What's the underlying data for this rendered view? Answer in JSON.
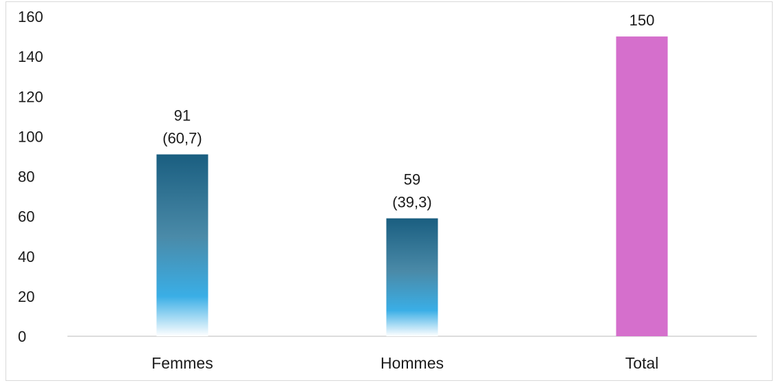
{
  "chart_data": {
    "type": "bar",
    "categories": [
      "Femmes",
      "Hommes",
      "Total"
    ],
    "values": [
      91,
      59,
      150
    ],
    "data_labels": [
      [
        "91",
        "(60,7)"
      ],
      [
        "59",
        "(39,3)"
      ],
      [
        "150"
      ]
    ],
    "yticks": [
      "0",
      "20",
      "40",
      "60",
      "80",
      "100",
      "120",
      "140",
      "160"
    ],
    "ylim": [
      0,
      160
    ],
    "grid": false,
    "legend": "none",
    "title": "",
    "xlabel": "",
    "ylabel": "",
    "colors": {
      "gradient_top": "#1a5e80",
      "gradient_mid": "#4a8aa8",
      "gradient_light": "#3aaee6",
      "gradient_bottom": "#ffffff",
      "total": "#d56fcc",
      "axis": "#d0d0d0",
      "frame": "#d9d9d9"
    }
  }
}
